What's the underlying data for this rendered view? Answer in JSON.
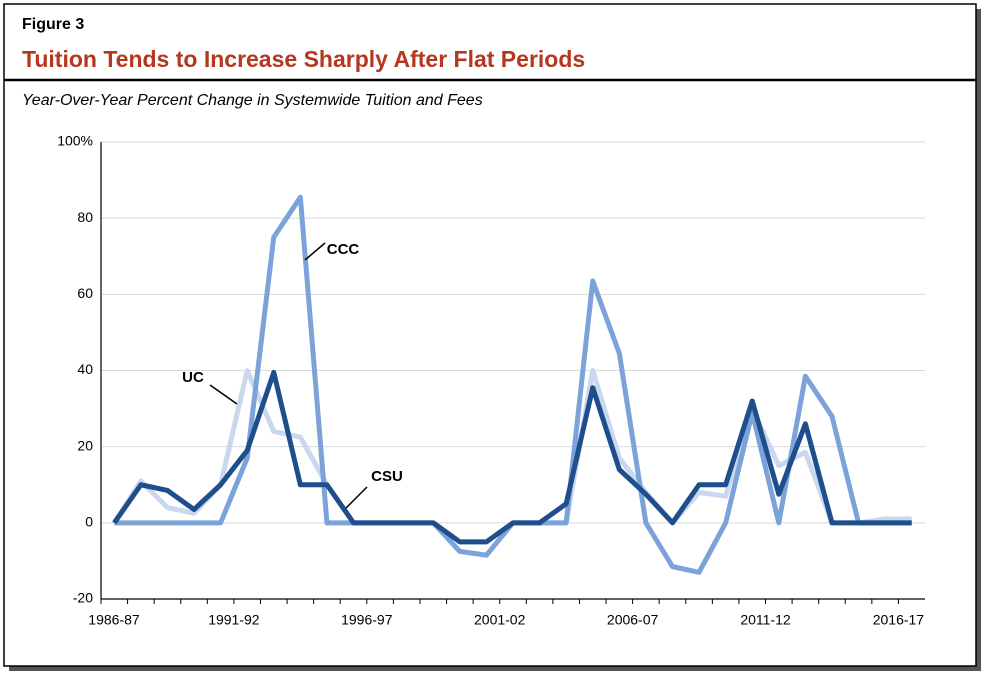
{
  "figure_label": "Figure 3",
  "chart_data": {
    "type": "line",
    "title": "Tuition Tends to Increase Sharply After Flat Periods",
    "subtitle": "Year-Over-Year Percent Change in Systemwide Tuition and Fees",
    "categories": [
      "1986-87",
      null,
      null,
      null,
      null,
      "1991-92",
      null,
      null,
      null,
      null,
      "1996-97",
      null,
      null,
      null,
      null,
      "2001-02",
      null,
      null,
      null,
      null,
      "2006-07",
      null,
      null,
      null,
      null,
      "2011-12",
      null,
      null,
      null,
      null,
      "2016-17"
    ],
    "series": [
      {
        "name": "CSU",
        "color": "#c9d7ef",
        "values": [
          0,
          11,
          4,
          2.5,
          10,
          40,
          24,
          22.5,
          10,
          0,
          0,
          0,
          0,
          -5,
          -5,
          0,
          0,
          0,
          40,
          17,
          8,
          0,
          8,
          7,
          30,
          15,
          18.5,
          0,
          0,
          1,
          1
        ]
      },
      {
        "name": "CCC",
        "color": "#7ba3d9",
        "values": [
          0,
          0,
          0,
          0,
          0,
          17,
          75,
          85.5,
          0,
          0,
          0,
          0,
          0,
          -7.5,
          -8.5,
          0,
          0,
          0,
          63.5,
          44.5,
          0,
          -11.5,
          -13,
          0,
          29,
          0,
          38.5,
          28,
          0,
          0,
          0
        ]
      },
      {
        "name": "UC",
        "color": "#1f4e8c",
        "values": [
          0,
          10,
          8.5,
          3.5,
          10,
          19,
          39.5,
          10,
          10,
          0,
          0,
          0,
          0,
          -5,
          -5,
          0,
          0,
          5,
          35.5,
          14,
          7.5,
          0,
          10,
          10,
          32,
          7.5,
          26,
          0,
          0,
          0,
          0
        ]
      }
    ],
    "ylim": [
      -20,
      100
    ],
    "yticks": [
      -20,
      0,
      20,
      40,
      60,
      80,
      {
        "value": 100,
        "label": "100%"
      }
    ],
    "grid": true
  }
}
